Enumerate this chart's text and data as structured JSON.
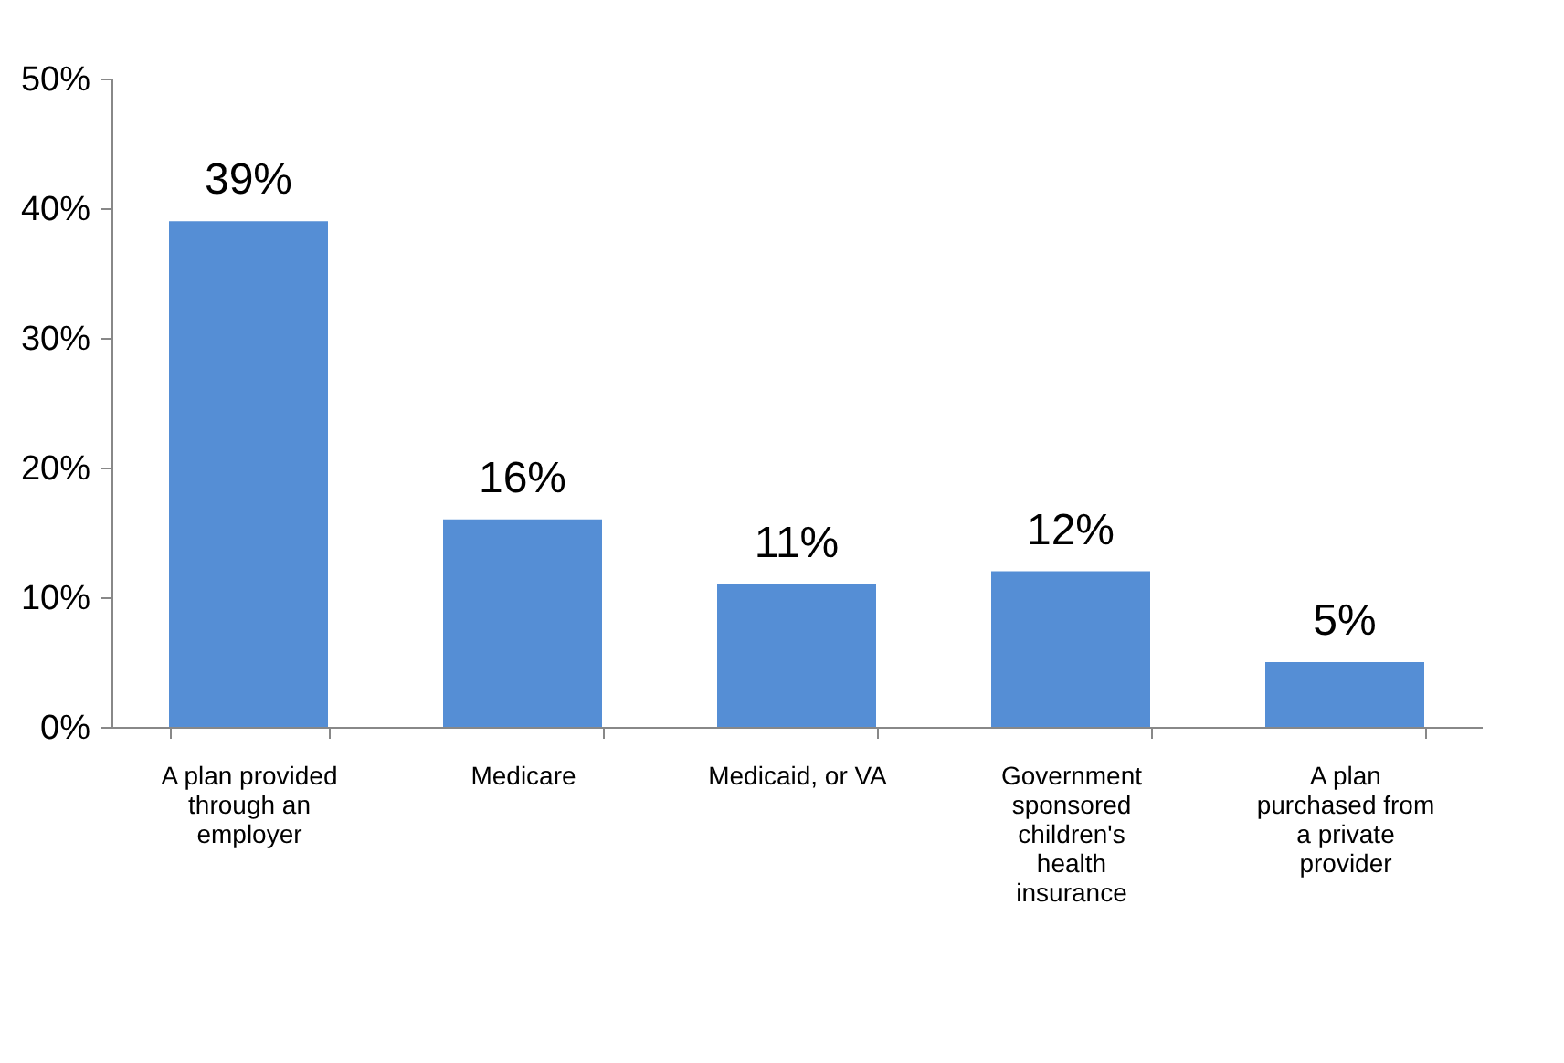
{
  "chart_data": {
    "type": "bar",
    "categories": [
      "A plan provided through an employer",
      "Medicare",
      "Medicaid, or VA",
      "Government sponsored children's health insurance",
      "A plan purchased from a private provider"
    ],
    "values": [
      39,
      16,
      11,
      12,
      5
    ],
    "value_labels": [
      "39%",
      "16%",
      "11%",
      "12%",
      "5%"
    ],
    "color": "#558ed5",
    "ylim": [
      0,
      50
    ],
    "yticks": [
      {
        "value": 0,
        "label": "0%"
      },
      {
        "value": 10,
        "label": "10%"
      },
      {
        "value": 20,
        "label": "20%"
      },
      {
        "value": 30,
        "label": "30%"
      },
      {
        "value": 40,
        "label": "40%"
      },
      {
        "value": 50,
        "label": "50%"
      }
    ],
    "grid": false
  }
}
